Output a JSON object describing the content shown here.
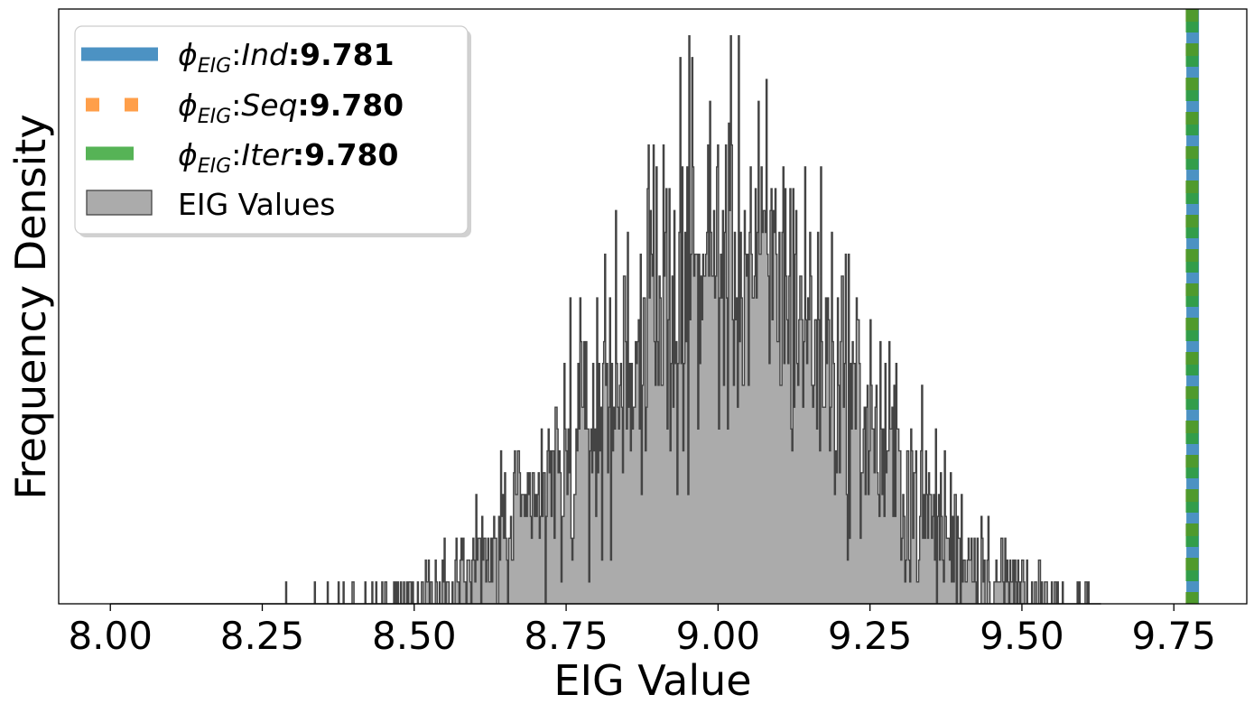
{
  "chart_data": {
    "type": "histogram",
    "title": "",
    "xlabel": "EIG Value",
    "ylabel": "Frequency Density",
    "xlim": [
      7.915,
      9.87
    ],
    "ylim": [
      0,
      1.0
    ],
    "x_ticks": [
      8.0,
      8.25,
      8.5,
      8.75,
      9.0,
      9.25,
      9.5,
      9.75
    ],
    "x_tick_labels": [
      "8.00",
      "8.25",
      "8.50",
      "8.75",
      "9.00",
      "9.25",
      "9.50",
      "9.75"
    ],
    "y_ticks_visible": false,
    "grid": false,
    "legend_position": "upper-left",
    "histogram": {
      "name": "EIG Values",
      "range": [
        8.0,
        9.63
      ],
      "mean": 9.02,
      "std": 0.2,
      "bins": 1000,
      "fill": "#ababab",
      "edge": "#444444"
    },
    "vlines": [
      {
        "symbol": "ϕ",
        "subscript": "EIG",
        "method": "Ind",
        "value_label": "9.781",
        "x": 9.781,
        "style": "solid",
        "color": "#1f77b4"
      },
      {
        "symbol": "ϕ",
        "subscript": "EIG",
        "method": "Seq",
        "value_label": "9.780",
        "x": 9.78,
        "style": "dotted",
        "color": "#ff7f0e"
      },
      {
        "symbol": "ϕ",
        "subscript": "EIG",
        "method": "Iter",
        "value_label": "9.780",
        "x": 9.78,
        "style": "dashed",
        "color": "#2ca02c"
      }
    ]
  }
}
